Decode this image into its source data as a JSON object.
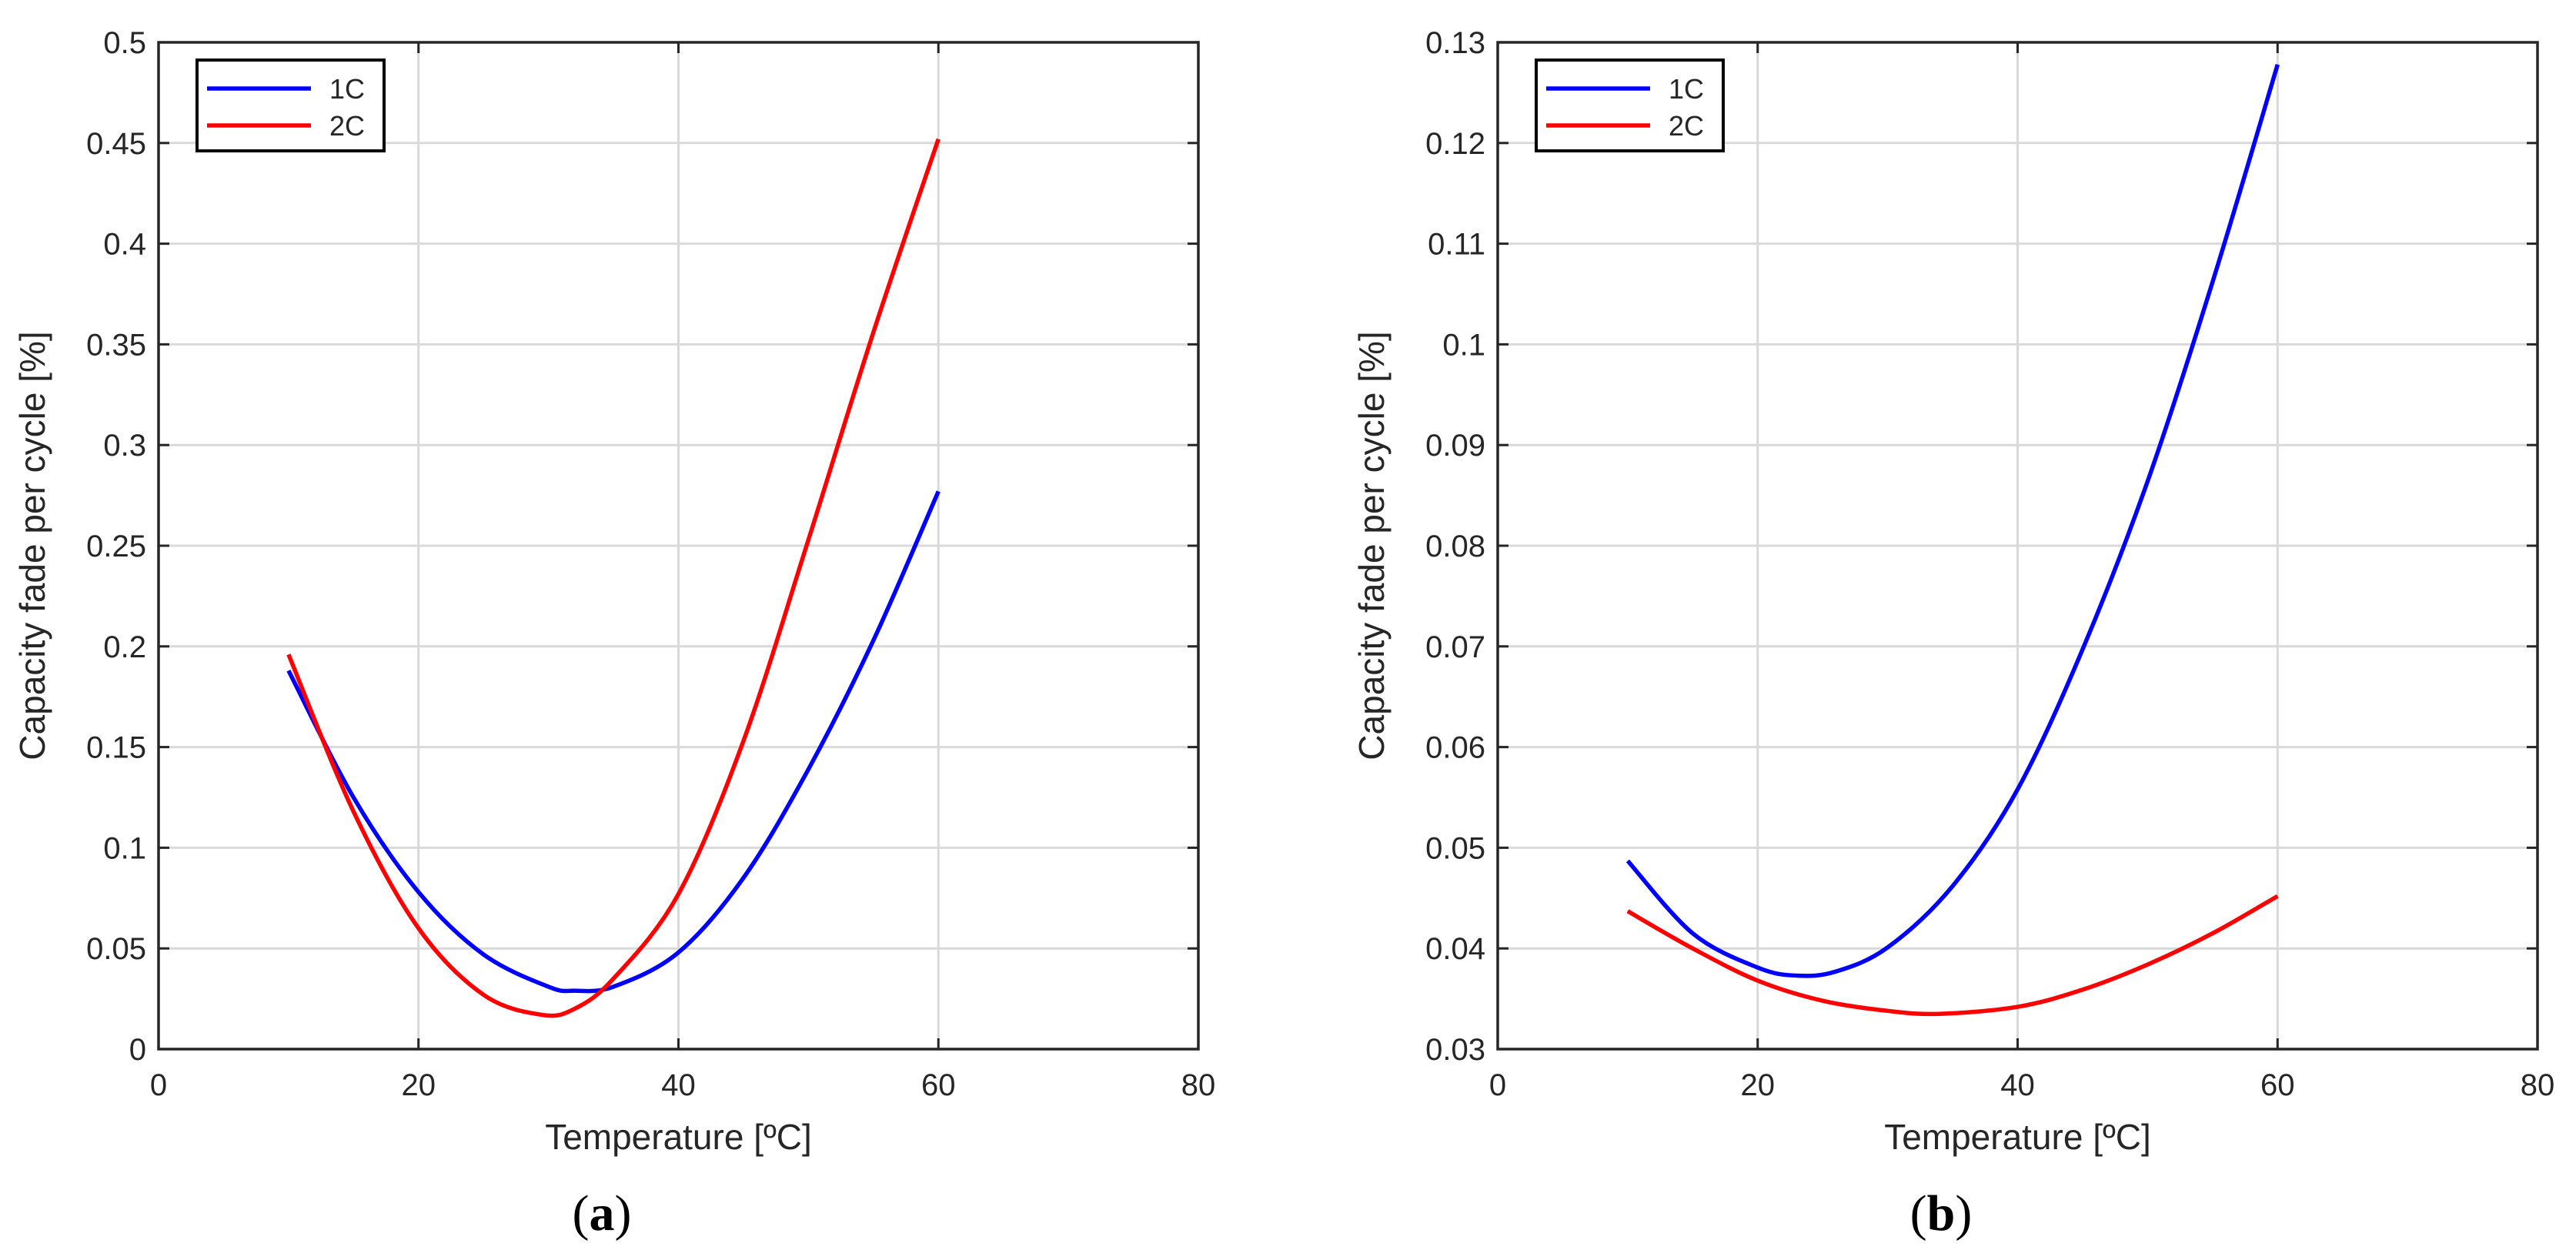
{
  "colors": {
    "series_1C": "#0000ff",
    "series_2C": "#ff0000",
    "grid": "#d9d9d9",
    "axes": "#262626"
  },
  "chart_data": [
    {
      "type": "line",
      "panel_label": "a",
      "xlabel": "Temperature [ºC]",
      "ylabel": "Capacity fade per cycle [%]",
      "xlim": [
        0,
        80
      ],
      "ylim": [
        0,
        0.5
      ],
      "xticks": [
        0,
        20,
        40,
        60,
        80
      ],
      "xtick_labels": [
        "0",
        "20",
        "40",
        "60",
        "80"
      ],
      "yticks": [
        0,
        0.05,
        0.1,
        0.15,
        0.2,
        0.25,
        0.3,
        0.35,
        0.4,
        0.45,
        0.5
      ],
      "ytick_labels": [
        "0",
        "0.05",
        "0.1",
        "0.15",
        "0.2",
        "0.25",
        "0.3",
        "0.35",
        "0.4",
        "0.45",
        "0.5"
      ],
      "grid": true,
      "legend_position": "top-left",
      "series": [
        {
          "name": "1C",
          "color": "#0000ff",
          "x": [
            10,
            15,
            20,
            25,
            30,
            32,
            35,
            40,
            45,
            50,
            55,
            60
          ],
          "y": [
            0.188,
            0.125,
            0.078,
            0.047,
            0.031,
            0.029,
            0.031,
            0.048,
            0.085,
            0.139,
            0.203,
            0.277
          ]
        },
        {
          "name": "2C",
          "color": "#ff0000",
          "x": [
            10,
            15,
            20,
            25,
            29.5,
            32,
            35,
            40,
            45,
            50,
            55,
            60
          ],
          "y": [
            0.196,
            0.118,
            0.06,
            0.027,
            0.017,
            0.02,
            0.035,
            0.077,
            0.153,
            0.253,
            0.356,
            0.452
          ]
        }
      ]
    },
    {
      "type": "line",
      "panel_label": "b",
      "xlabel": "Temperature [ºC]",
      "ylabel": "Capacity fade per cycle [%]",
      "xlim": [
        0,
        80
      ],
      "ylim": [
        0.03,
        0.13
      ],
      "xticks": [
        0,
        20,
        40,
        60,
        80
      ],
      "xtick_labels": [
        "0",
        "20",
        "40",
        "60",
        "80"
      ],
      "yticks": [
        0.03,
        0.04,
        0.05,
        0.06,
        0.07,
        0.08,
        0.09,
        0.1,
        0.11,
        0.12,
        0.13
      ],
      "ytick_labels": [
        "0.03",
        "0.04",
        "0.05",
        "0.06",
        "0.07",
        "0.08",
        "0.09",
        "0.1",
        "0.11",
        "0.12",
        "0.13"
      ],
      "grid": true,
      "legend_position": "top-left",
      "series": [
        {
          "name": "1C",
          "color": "#0000ff",
          "x": [
            10,
            15,
            20,
            23,
            26,
            30,
            35,
            40,
            45,
            50,
            55,
            60
          ],
          "y": [
            0.0487,
            0.0415,
            0.0381,
            0.0373,
            0.0377,
            0.0401,
            0.0462,
            0.0558,
            0.0697,
            0.0864,
            0.1062,
            0.1278
          ]
        },
        {
          "name": "2C",
          "color": "#ff0000",
          "x": [
            10,
            15,
            20,
            25,
            30,
            34,
            40,
            45,
            50,
            55,
            60
          ],
          "y": [
            0.0437,
            0.04,
            0.0368,
            0.0348,
            0.0338,
            0.0335,
            0.0342,
            0.0359,
            0.0384,
            0.0415,
            0.0452
          ]
        }
      ]
    }
  ]
}
